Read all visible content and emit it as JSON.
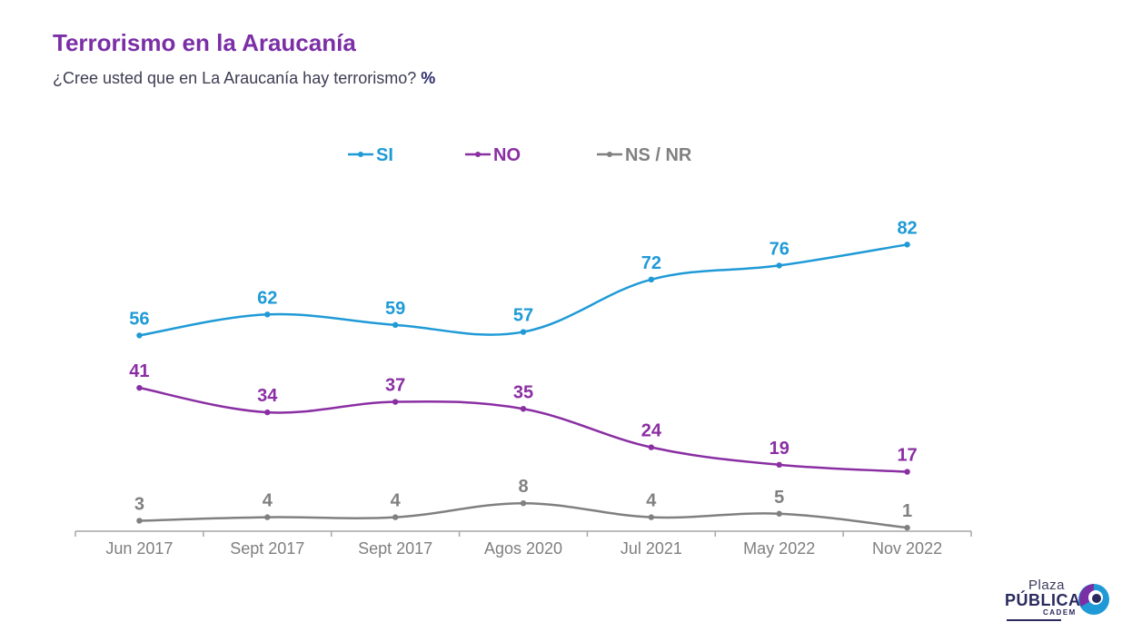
{
  "header": {
    "title": "Terrorismo en la Araucanía",
    "subtitle": "¿Cree usted que en La Araucanía hay terrorismo?",
    "unit": "%"
  },
  "logo": {
    "line1": "Plaza",
    "line2": "PÚBLICA",
    "line3": "CADEM"
  },
  "chart_data": {
    "type": "line",
    "title": "Terrorismo en la Araucanía",
    "subtitle": "¿Cree usted que en La Araucanía hay terrorismo? %",
    "categories": [
      "Jun 2017",
      "Sept 2017",
      "Sept 2017",
      "Agos 2020",
      "Jul 2021",
      "May 2022",
      "Nov 2022"
    ],
    "series": [
      {
        "name": "SI",
        "color": "#1f9ad6",
        "values": [
          56,
          62,
          59,
          57,
          72,
          76,
          82
        ]
      },
      {
        "name": "NO",
        "color": "#8a2ea3",
        "values": [
          41,
          34,
          37,
          35,
          24,
          19,
          17
        ]
      },
      {
        "name": "NS / NR",
        "color": "#808080",
        "values": [
          3,
          4,
          4,
          8,
          4,
          5,
          1
        ]
      }
    ],
    "ylim": [
      0,
      100
    ],
    "grid": false,
    "legend": "top-center",
    "data_labels": true,
    "smooth": true,
    "axis_color": "#a6a6a6",
    "tick_label_color": "#7f7f7f"
  }
}
